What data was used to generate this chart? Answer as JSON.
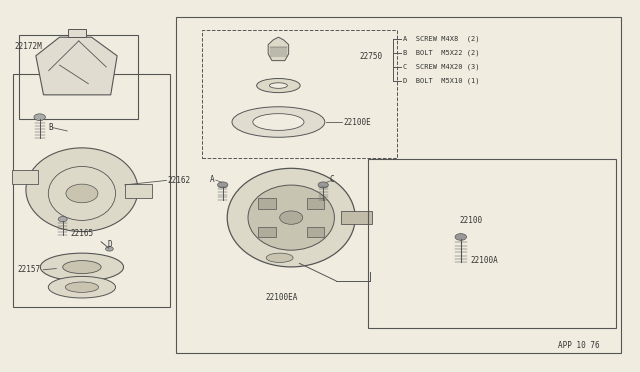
{
  "bg_color": "#f0ede0",
  "line_color": "#555555",
  "text_color": "#333333",
  "app_code": "APP 10 76",
  "hardware": {
    "A": "SCREW M4X8  (2)",
    "B": "BOLT  M5X22 (2)",
    "C": "SCREW M4X20 (3)",
    "D": "BOLT  M5X10 (1)"
  }
}
